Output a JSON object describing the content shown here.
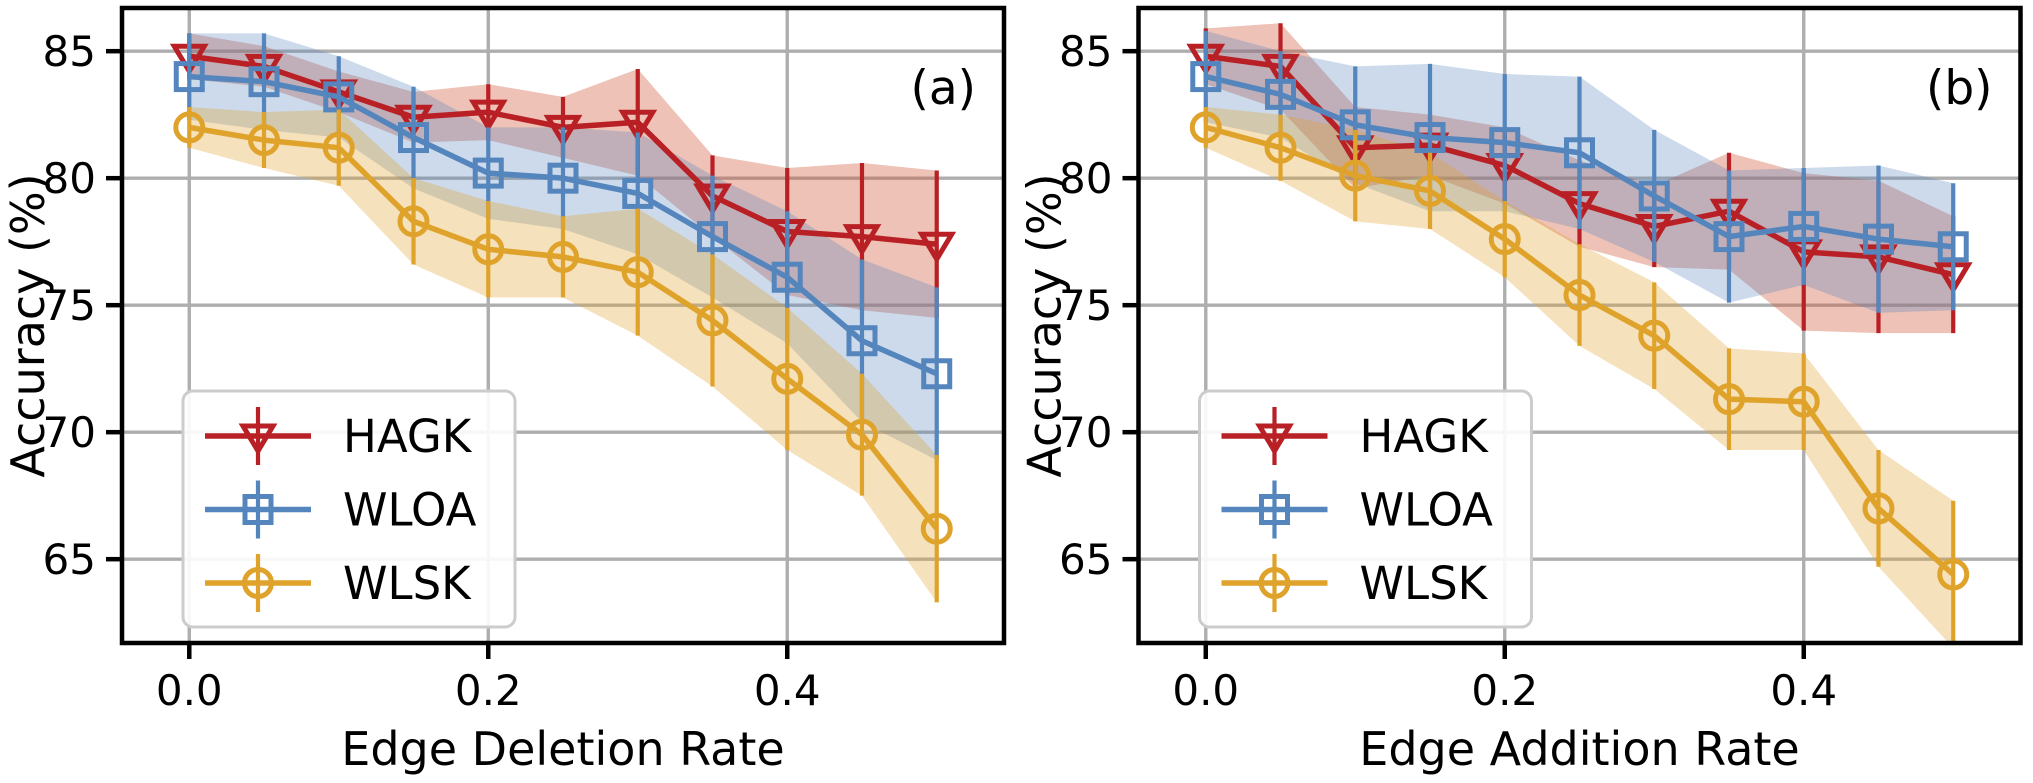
{
  "page": {
    "background": "#ffffff"
  },
  "chart_data": [
    {
      "type": "line",
      "panel_label": "(a)",
      "xlabel": "Edge Deletion Rate",
      "ylabel": "Accuracy (%)",
      "x": [
        0.0,
        0.05,
        0.1,
        0.15,
        0.2,
        0.25,
        0.3,
        0.35,
        0.4,
        0.45,
        0.5
      ],
      "xlim": [
        -0.045,
        0.545
      ],
      "ylim": [
        61.7,
        86.7
      ],
      "xticks": [
        {
          "v": 0.0,
          "label": "0.0"
        },
        {
          "v": 0.2,
          "label": "0.2"
        },
        {
          "v": 0.4,
          "label": "0.4"
        }
      ],
      "yticks": [
        {
          "v": 65,
          "label": "65"
        },
        {
          "v": 70,
          "label": "70"
        },
        {
          "v": 75,
          "label": "75"
        },
        {
          "v": 80,
          "label": "80"
        },
        {
          "v": 85,
          "label": "85"
        }
      ],
      "grid": true,
      "legend_position": "lower-left",
      "series": [
        {
          "name": "HAGK",
          "marker": "triangle-down",
          "color": "#b92025",
          "band_color": "#cf5535",
          "band_opacity": 0.36,
          "values": [
            84.8,
            84.4,
            83.4,
            82.4,
            82.6,
            82.0,
            82.2,
            79.3,
            77.9,
            77.7,
            77.4
          ],
          "err": [
            0.9,
            0.8,
            0.8,
            1.0,
            1.1,
            1.2,
            2.1,
            1.6,
            2.5,
            2.9,
            2.9
          ]
        },
        {
          "name": "WLOA",
          "marker": "square",
          "color": "#5585bd",
          "band_color": "#5585bd",
          "band_opacity": 0.3,
          "values": [
            84.0,
            83.8,
            83.2,
            81.6,
            80.2,
            80.0,
            79.4,
            77.7,
            76.1,
            73.6,
            72.3
          ],
          "err": [
            1.7,
            1.9,
            1.6,
            2.0,
            1.8,
            2.0,
            2.4,
            2.4,
            2.6,
            3.2,
            3.4
          ]
        },
        {
          "name": "WLSK",
          "marker": "circle",
          "color": "#dfa32b",
          "band_color": "#dfa32b",
          "band_opacity": 0.32,
          "values": [
            82.0,
            81.5,
            81.2,
            78.3,
            77.2,
            76.9,
            76.3,
            74.4,
            72.1,
            69.9,
            66.2
          ],
          "err": [
            0.8,
            1.1,
            1.5,
            1.7,
            1.9,
            1.6,
            2.5,
            2.6,
            2.8,
            2.4,
            2.9
          ]
        }
      ]
    },
    {
      "type": "line",
      "panel_label": "(b)",
      "xlabel": "Edge Addition Rate",
      "ylabel": "Accuracy (%)",
      "x": [
        0.0,
        0.05,
        0.1,
        0.15,
        0.2,
        0.25,
        0.3,
        0.35,
        0.4,
        0.45,
        0.5
      ],
      "xlim": [
        -0.045,
        0.545
      ],
      "ylim": [
        61.7,
        86.7
      ],
      "xticks": [
        {
          "v": 0.0,
          "label": "0.0"
        },
        {
          "v": 0.2,
          "label": "0.2"
        },
        {
          "v": 0.4,
          "label": "0.4"
        }
      ],
      "yticks": [
        {
          "v": 65,
          "label": "65"
        },
        {
          "v": 70,
          "label": "70"
        },
        {
          "v": 75,
          "label": "75"
        },
        {
          "v": 80,
          "label": "80"
        },
        {
          "v": 85,
          "label": "85"
        }
      ],
      "grid": true,
      "legend_position": "lower-left",
      "series": [
        {
          "name": "HAGK",
          "marker": "triangle-down",
          "color": "#b92025",
          "band_color": "#cf5535",
          "band_opacity": 0.36,
          "values": [
            84.8,
            84.4,
            81.2,
            81.3,
            80.5,
            79.0,
            78.1,
            78.7,
            77.1,
            76.9,
            76.2
          ],
          "err": [
            1.1,
            1.7,
            1.6,
            1.2,
            1.5,
            1.7,
            1.6,
            2.3,
            3.1,
            3.0,
            2.3
          ]
        },
        {
          "name": "WLOA",
          "marker": "square",
          "color": "#5585bd",
          "band_color": "#5585bd",
          "band_opacity": 0.3,
          "values": [
            84.0,
            83.3,
            82.1,
            81.6,
            81.4,
            81.0,
            79.3,
            77.7,
            78.1,
            77.6,
            77.3
          ],
          "err": [
            1.8,
            1.7,
            2.3,
            2.9,
            2.7,
            3.0,
            2.6,
            2.6,
            2.3,
            2.9,
            2.5
          ]
        },
        {
          "name": "WLSK",
          "marker": "circle",
          "color": "#dfa32b",
          "band_color": "#dfa32b",
          "band_opacity": 0.32,
          "values": [
            82.0,
            81.2,
            80.1,
            79.5,
            77.6,
            75.4,
            73.8,
            71.3,
            71.2,
            67.0,
            64.4
          ],
          "err": [
            0.8,
            1.3,
            1.8,
            1.5,
            1.5,
            2.0,
            2.1,
            2.0,
            1.9,
            2.3,
            2.9
          ]
        }
      ]
    }
  ],
  "style": {
    "grid_color": "#aeaeae",
    "spine_color": "#000000",
    "text_color": "#000000",
    "legend_border_color": "#cccccc",
    "legend_bg_color": "#ffffff"
  }
}
